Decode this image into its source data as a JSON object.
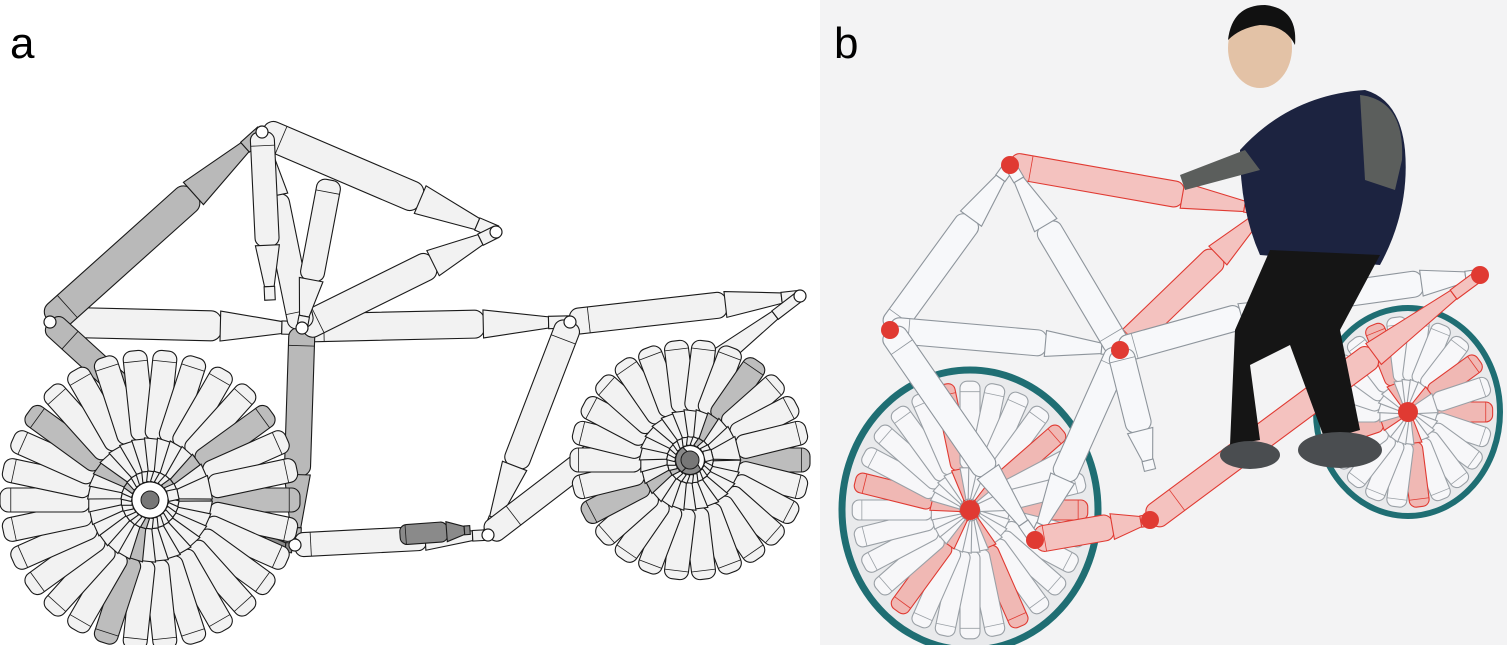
{
  "panels": {
    "a": {
      "label": "a"
    },
    "b": {
      "label": "b"
    }
  },
  "colors": {
    "background": "#ffffff",
    "line": "#1a1a1a",
    "bottle_fill": "#f2f2f2",
    "bottle_shade": "#8a8a8a",
    "photo_background": "#f3f3f4",
    "bottle_red": "#e03a32",
    "wheel_teal": "#1f6e73",
    "sweater_navy": "#1c2340",
    "sleeve_grey": "#5b5e5c",
    "trousers": "#151515",
    "shoe_grey": "#4a4d50"
  }
}
